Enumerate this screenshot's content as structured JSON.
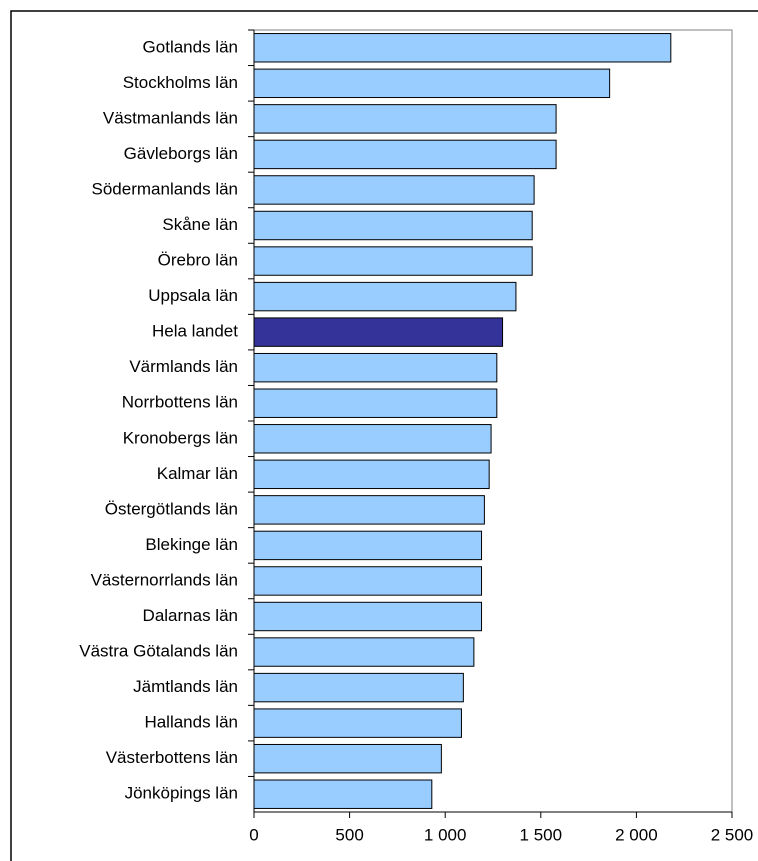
{
  "chart_data": {
    "type": "barh",
    "categories": [
      "Gotlands län",
      "Stockholms län",
      "Västmanlands län",
      "Gävleborgs län",
      "Södermanlands län",
      "Skåne län",
      "Örebro län",
      "Uppsala län",
      "Hela landet",
      "Värmlands län",
      "Norrbottens län",
      "Kronobergs län",
      "Kalmar län",
      "Östergötlands län",
      "Blekinge län",
      "Västernorrlands län",
      "Dalarnas län",
      "Västra Götalands län",
      "Jämtlands län",
      "Hallands län",
      "Västerbottens län",
      "Jönköpings län"
    ],
    "values": [
      2180,
      1860,
      1580,
      1580,
      1465,
      1455,
      1455,
      1370,
      1300,
      1270,
      1270,
      1240,
      1230,
      1205,
      1190,
      1190,
      1190,
      1150,
      1095,
      1085,
      980,
      930
    ],
    "colors": [
      "#99ccff",
      "#99ccff",
      "#99ccff",
      "#99ccff",
      "#99ccff",
      "#99ccff",
      "#99ccff",
      "#99ccff",
      "#333399",
      "#99ccff",
      "#99ccff",
      "#99ccff",
      "#99ccff",
      "#99ccff",
      "#99ccff",
      "#99ccff",
      "#99ccff",
      "#99ccff",
      "#99ccff",
      "#99ccff",
      "#99ccff",
      "#99ccff"
    ],
    "xlim": [
      0,
      2500
    ],
    "xticks": [
      0,
      500,
      {
        "value": 1000,
        "label": "1 000"
      },
      {
        "value": 1500,
        "label": "1 500"
      },
      {
        "value": 2000,
        "label": "2 000"
      },
      {
        "value": 2500,
        "label": "2 500"
      }
    ],
    "grid": false
  }
}
